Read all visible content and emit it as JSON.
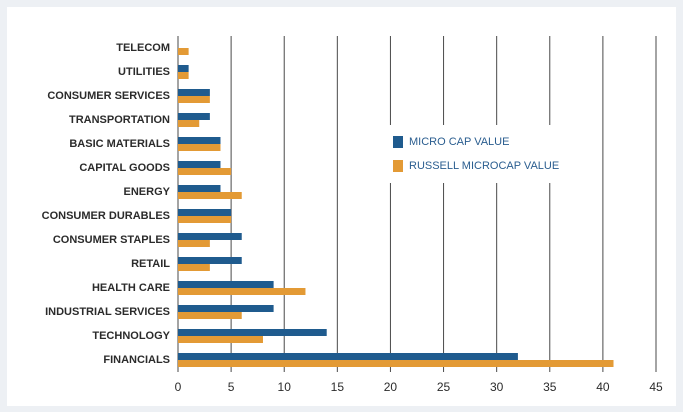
{
  "chart_data": {
    "type": "hbar",
    "categories": [
      "TELECOM",
      "UTILITIES",
      "CONSUMER SERVICES",
      "TRANSPORTATION",
      "BASIC MATERIALS",
      "CAPITAL GOODS",
      "ENERGY",
      "CONSUMER DURABLES",
      "CONSUMER STAPLES",
      "RETAIL",
      "HEALTH CARE",
      "INDUSTRIAL SERVICES",
      "TECHNOLOGY",
      "FINANCIALS"
    ],
    "series": [
      {
        "name": "MICRO CAP VALUE",
        "color": "#1f5b8e",
        "values": [
          0,
          1,
          3,
          3,
          4,
          4,
          4,
          5,
          6,
          6,
          9,
          9,
          14,
          32
        ]
      },
      {
        "name": "RUSSELL MICROCAP VALUE",
        "color": "#e39a35",
        "values": [
          1,
          1,
          3,
          2,
          4,
          5,
          6,
          5,
          3,
          3,
          12,
          6,
          8,
          41
        ]
      }
    ],
    "xlim": [
      0,
      45
    ],
    "xticks": [
      0,
      5,
      10,
      15,
      20,
      25,
      30,
      35,
      40,
      45
    ],
    "grid": true,
    "legend_position": "center-right"
  }
}
